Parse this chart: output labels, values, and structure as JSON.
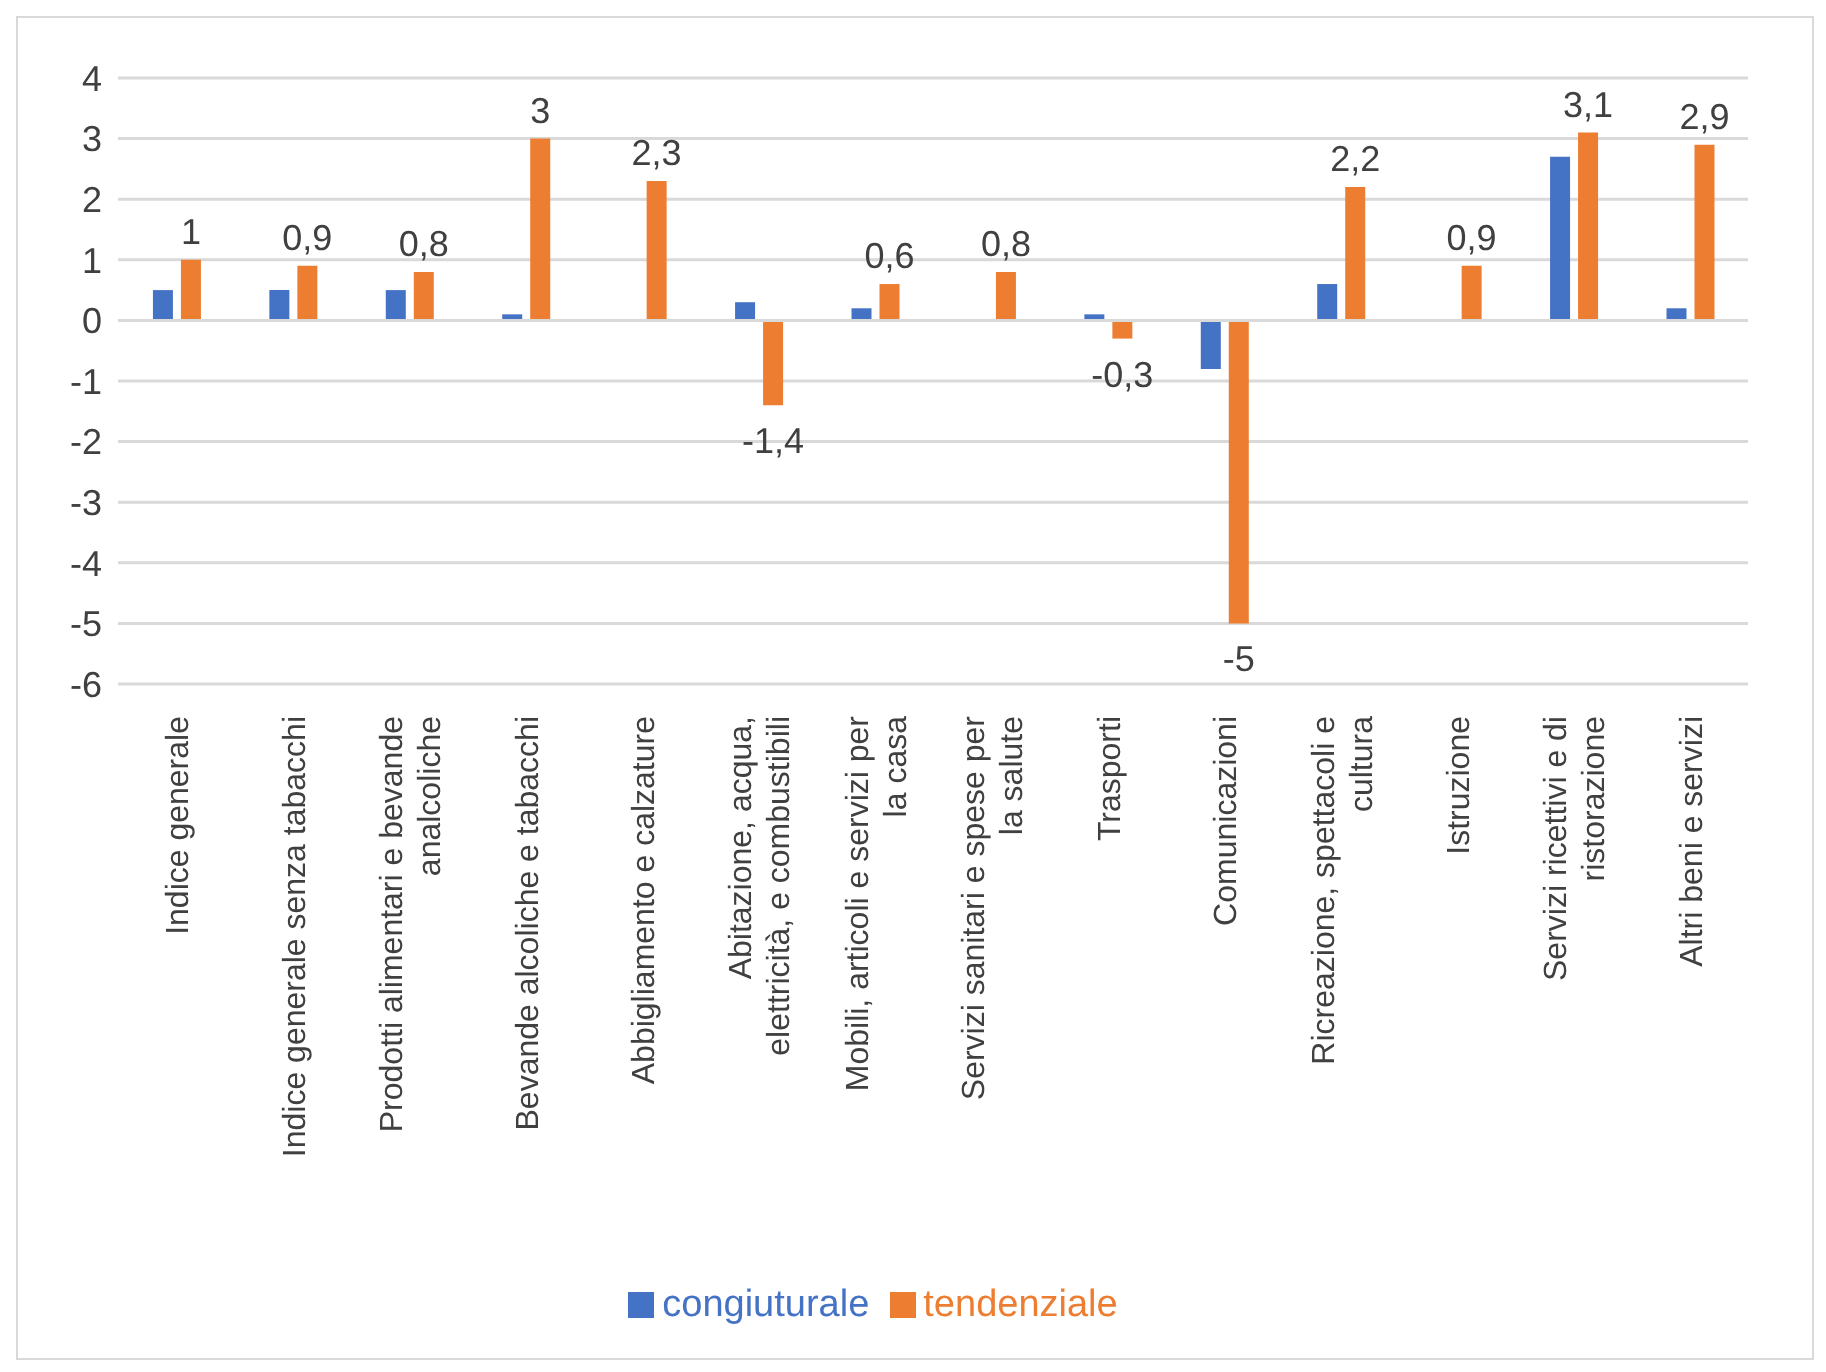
{
  "chart_data": {
    "type": "bar",
    "categories": [
      "Indice generale",
      "Indice generale senza tabacchi",
      "Prodotti alimentari e bevande analcoliche",
      "Bevande alcoliche e tabacchi",
      "Abbigliamento e calzature",
      "Abitazione, acqua, elettricità, e combustibili",
      "Mobili, articoli e servizi per la casa",
      "Servizi sanitari e spese per la salute",
      "Trasporti",
      "Comunicazioni",
      "Ricreazione, spettacoli e cultura",
      "Istruzione",
      "Servizi ricettivi e di ristorazione",
      "Altri beni e servizi"
    ],
    "series": [
      {
        "name": "congiuturale",
        "color": "#4472c4",
        "values": [
          0.5,
          0.5,
          0.5,
          0.1,
          0,
          0.3,
          0.2,
          0,
          0.1,
          -0.8,
          0.6,
          0,
          2.7,
          0.2
        ]
      },
      {
        "name": "tendenziale",
        "color": "#ed7d31",
        "values": [
          1,
          0.9,
          0.8,
          3,
          2.3,
          -1.4,
          0.6,
          0.8,
          -0.3,
          -5,
          2.2,
          0.9,
          3.1,
          2.9
        ],
        "value_labels": [
          "1",
          "0,9",
          "0,8",
          "3",
          "2,3",
          "-1,4",
          "0,6",
          "0,8",
          "-0,3",
          "-5",
          "2,2",
          "0,9",
          "3,1",
          "2,9"
        ]
      }
    ],
    "ylim": [
      -6,
      4
    ],
    "yticks": [
      -6,
      -5,
      -4,
      -3,
      -2,
      -1,
      0,
      1,
      2,
      3,
      4
    ],
    "grid": "y",
    "legend": "bottom"
  }
}
